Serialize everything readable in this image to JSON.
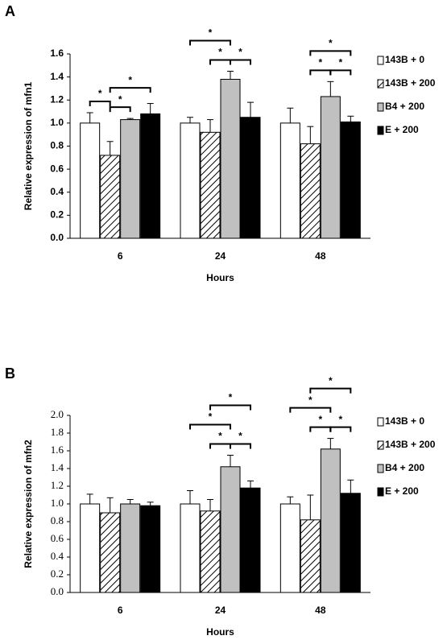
{
  "chart_data": [
    {
      "type": "bar",
      "panel_label": "A",
      "y_label": "Relative expression of mfn1",
      "x_label": "Hours",
      "categories": [
        "6",
        "24",
        "48"
      ],
      "series": [
        {
          "name": "143B + 0",
          "color": "#ffffff",
          "values": [
            1.0,
            1.0,
            1.0
          ],
          "errors": [
            0.09,
            0.05,
            0.13
          ]
        },
        {
          "name": "143B + 200",
          "color": "#ffffff",
          "pattern": "diagonal",
          "values": [
            0.72,
            0.92,
            0.82
          ],
          "errors": [
            0.12,
            0.11,
            0.15
          ]
        },
        {
          "name": "B4 + 200",
          "color": "#c0c0c0",
          "values": [
            1.03,
            1.38,
            1.23
          ],
          "errors": [
            0.01,
            0.07,
            0.13
          ]
        },
        {
          "name": "E + 200",
          "color": "#000000",
          "values": [
            1.08,
            1.05,
            1.01
          ],
          "errors": [
            0.09,
            0.13,
            0.05
          ]
        }
      ],
      "significance": [
        {
          "category": 0,
          "pair": [
            0,
            1
          ],
          "label": "*"
        },
        {
          "category": 0,
          "pair": [
            1,
            2
          ],
          "label": "*"
        },
        {
          "category": 0,
          "pair": [
            1,
            3
          ],
          "label": "*"
        },
        {
          "category": 1,
          "pair": [
            1,
            2
          ],
          "label": "*"
        },
        {
          "category": 1,
          "pair": [
            2,
            3
          ],
          "label": "*"
        },
        {
          "category": 1,
          "pair": [
            0,
            2
          ],
          "label": "*"
        },
        {
          "category": 2,
          "pair": [
            1,
            2
          ],
          "label": "*"
        },
        {
          "category": 2,
          "pair": [
            2,
            3
          ],
          "label": "*"
        },
        {
          "category": 2,
          "pair": [
            1,
            3
          ],
          "label": "*"
        }
      ],
      "ylim": [
        0,
        1.6
      ],
      "yticks": [
        {
          "value": 0,
          "label": "0.0"
        },
        {
          "value": 0.2,
          "label": "0.2"
        },
        {
          "value": 0.4,
          "label": "0.4"
        },
        {
          "value": 0.6,
          "label": "0.6"
        },
        {
          "value": 0.8,
          "label": "0.8"
        },
        {
          "value": 1.0,
          "label": "1.0"
        },
        {
          "value": 1.2,
          "label": "1.2"
        },
        {
          "value": 1.4,
          "label": "1.4"
        },
        {
          "value": 1.6,
          "label": "1.6"
        }
      ],
      "grid": false,
      "legend": "right"
    },
    {
      "type": "bar",
      "panel_label": "B",
      "y_label": "Relative expression of mfn2",
      "x_label": "Hours",
      "categories": [
        "6",
        "24",
        "48"
      ],
      "series": [
        {
          "name": "143B + 0",
          "color": "#ffffff",
          "values": [
            1.0,
            1.0,
            1.0
          ],
          "errors": [
            0.11,
            0.15,
            0.08
          ]
        },
        {
          "name": "143B + 200",
          "color": "#ffffff",
          "pattern": "diagonal",
          "values": [
            0.9,
            0.92,
            0.82
          ],
          "errors": [
            0.17,
            0.13,
            0.28
          ]
        },
        {
          "name": "B4 + 200",
          "color": "#c0c0c0",
          "values": [
            1.0,
            1.42,
            1.62
          ],
          "errors": [
            0.05,
            0.13,
            0.12
          ]
        },
        {
          "name": "E + 200",
          "color": "#000000",
          "values": [
            0.98,
            1.18,
            1.12
          ],
          "errors": [
            0.04,
            0.08,
            0.15
          ]
        }
      ],
      "significance": [
        {
          "category": 1,
          "pair": [
            0,
            2
          ],
          "label": "*"
        },
        {
          "category": 1,
          "pair": [
            1,
            2
          ],
          "label": "*"
        },
        {
          "category": 1,
          "pair": [
            2,
            3
          ],
          "label": "*"
        },
        {
          "category": 1,
          "pair": [
            1,
            3
          ],
          "label": "*"
        },
        {
          "category": 2,
          "pair": [
            0,
            2
          ],
          "label": "*"
        },
        {
          "category": 2,
          "pair": [
            1,
            2
          ],
          "label": "*"
        },
        {
          "category": 2,
          "pair": [
            2,
            3
          ],
          "label": "*"
        },
        {
          "category": 2,
          "pair": [
            1,
            3
          ],
          "label": "*"
        }
      ],
      "ylim": [
        0,
        2.0
      ],
      "yticks": [
        {
          "value": 0,
          "label": "0.0"
        },
        {
          "value": 0.2,
          "label": "0.2"
        },
        {
          "value": 0.4,
          "label": "0.4"
        },
        {
          "value": 0.6,
          "label": "0.6"
        },
        {
          "value": 0.8,
          "label": "0.8"
        },
        {
          "value": 1.0,
          "label": "1.0"
        },
        {
          "value": 1.2,
          "label": "1.2"
        },
        {
          "value": 1.4,
          "label": "1.4"
        },
        {
          "value": 1.6,
          "label": "1.6"
        },
        {
          "value": 1.8,
          "label": "1.8"
        },
        {
          "value": 2.0,
          "label": "2.0"
        }
      ],
      "grid": false,
      "legend": "right"
    }
  ]
}
